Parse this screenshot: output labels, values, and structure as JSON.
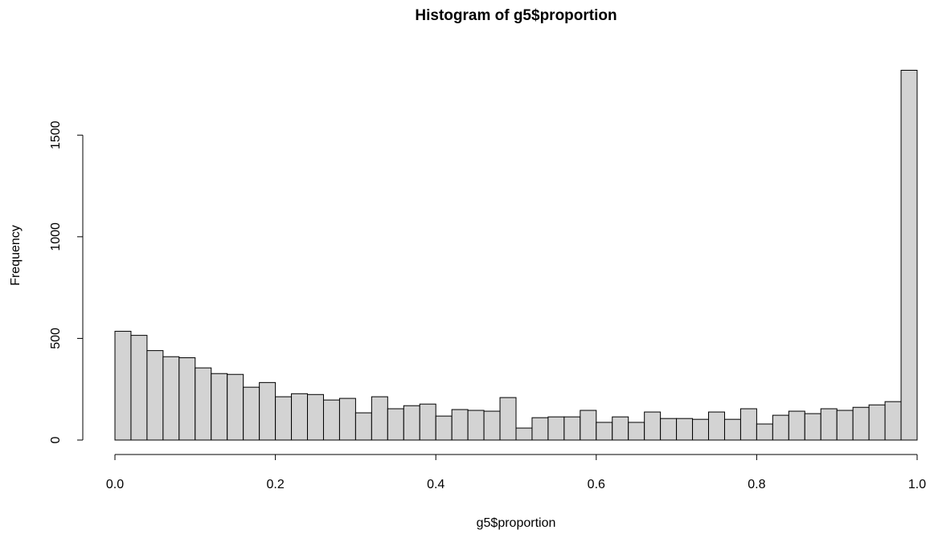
{
  "chart_data": {
    "type": "histogram",
    "title": "Histogram of g5$proportion",
    "x_label": "g5$proportion",
    "y_label": "Frequency",
    "bins": [
      0,
      0.02,
      0.04,
      0.06,
      0.08,
      0.1,
      0.12,
      0.14,
      0.16,
      0.18,
      0.2,
      0.22,
      0.24,
      0.26,
      0.28,
      0.3,
      0.32,
      0.34,
      0.36,
      0.38,
      0.4,
      0.42,
      0.44,
      0.46,
      0.48,
      0.5,
      0.52,
      0.54,
      0.56,
      0.58,
      0.6,
      0.62,
      0.64,
      0.66,
      0.68,
      0.7,
      0.72,
      0.74,
      0.76,
      0.78,
      0.8,
      0.82,
      0.84,
      0.86,
      0.88,
      0.9,
      0.92,
      0.94,
      0.96,
      0.98,
      1
    ],
    "counts": [
      535,
      515,
      440,
      410,
      405,
      355,
      327,
      323,
      260,
      283,
      213,
      228,
      224,
      197,
      205,
      134,
      213,
      154,
      169,
      177,
      118,
      150,
      146,
      142,
      209,
      59,
      110,
      114,
      114,
      146,
      87,
      114,
      87,
      138,
      106,
      106,
      102,
      138,
      102,
      154,
      79,
      122,
      142,
      130,
      154,
      146,
      161,
      173,
      189,
      1819
    ],
    "color": "#d3d3d3",
    "xlim": [
      0,
      1
    ],
    "xticks": [
      {
        "value": 0,
        "label": "0.0"
      },
      0.2,
      0.4,
      0.6,
      0.8,
      {
        "value": 1,
        "label": "1.0"
      }
    ],
    "ylim": [
      0,
      1900
    ],
    "yticks": [
      0,
      500,
      1000,
      1500
    ]
  }
}
